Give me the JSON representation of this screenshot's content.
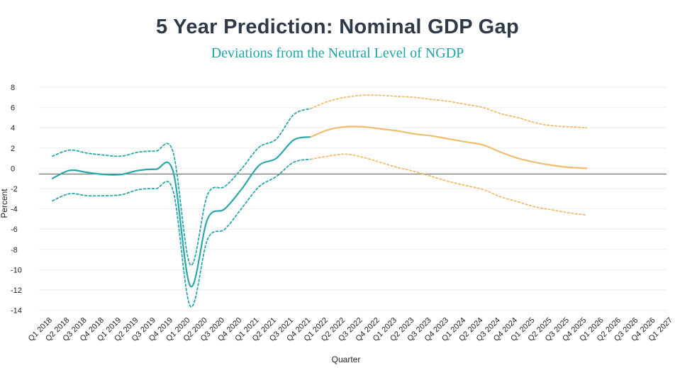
{
  "title": "5 Year Prediction: Nominal GDP Gap",
  "subtitle": "Deviations from the Neutral Level of NGDP",
  "colors": {
    "history": "#2aa7a9",
    "forecast": "#f0bd6e",
    "zero_line": "#555555",
    "grid": "#eeeeee"
  },
  "chart_data": {
    "type": "line",
    "title": "5 Year Prediction: Nominal GDP Gap",
    "subtitle": "Deviations from the Neutral Level of NGDP",
    "xlabel": "Quarter",
    "ylabel": "Percent",
    "ylim": [
      -14,
      8
    ],
    "yticks": [
      8,
      6,
      4,
      2,
      0,
      -2,
      -4,
      -6,
      -8,
      -10,
      -12,
      -14
    ],
    "grid": true,
    "categories": [
      "Q1 2018",
      "Q2 2018",
      "Q3 2018",
      "Q4 2018",
      "Q1 2019",
      "Q2 2019",
      "Q3 2019",
      "Q4 2019",
      "Q1 2020",
      "Q2 2020",
      "Q3 2020",
      "Q4 2020",
      "Q1 2021",
      "Q2 2021",
      "Q3 2021",
      "Q4 2021",
      "Q1 2022",
      "Q2 2022",
      "Q3 2022",
      "Q4 2022",
      "Q1 2023",
      "Q2 2023",
      "Q3 2023",
      "Q4 2023",
      "Q1 2024",
      "Q2 2024",
      "Q3 2024",
      "Q4 2024",
      "Q1 2025",
      "Q2 2025",
      "Q3 2025",
      "Q4 2025",
      "Q1 2026",
      "Q2 2026",
      "Q3 2026",
      "Q4 2026",
      "Q1 2027"
    ],
    "history_end_index": 16,
    "series": [
      {
        "role": "history-point",
        "style": "solid",
        "values": [
          -1.0,
          -0.2,
          -0.4,
          -0.6,
          -0.6,
          -0.2,
          -0.1,
          -0.3,
          -11.6,
          -5.0,
          -4.0,
          -2.0,
          0.3,
          1.0,
          2.8,
          3.1,
          null,
          null,
          null,
          null,
          null,
          null,
          null,
          null,
          null,
          null,
          null,
          null,
          null,
          null,
          null,
          null,
          null,
          null,
          null,
          null,
          null
        ]
      },
      {
        "role": "history-upper",
        "style": "dotted",
        "values": [
          1.2,
          1.8,
          1.5,
          1.3,
          1.2,
          1.6,
          1.7,
          1.6,
          -9.5,
          -2.6,
          -1.8,
          0.0,
          2.1,
          2.9,
          5.3,
          5.9,
          null,
          null,
          null,
          null,
          null,
          null,
          null,
          null,
          null,
          null,
          null,
          null,
          null,
          null,
          null,
          null,
          null,
          null,
          null,
          null,
          null
        ]
      },
      {
        "role": "history-lower",
        "style": "dotted",
        "values": [
          -3.2,
          -2.5,
          -2.7,
          -2.7,
          -2.6,
          -2.1,
          -2.0,
          -2.2,
          -13.6,
          -7.0,
          -6.0,
          -3.9,
          -1.8,
          -0.8,
          0.6,
          0.9,
          null,
          null,
          null,
          null,
          null,
          null,
          null,
          null,
          null,
          null,
          null,
          null,
          null,
          null,
          null,
          null,
          null,
          null,
          null,
          null,
          null
        ]
      },
      {
        "role": "forecast-point",
        "style": "solid",
        "values": [
          null,
          null,
          null,
          null,
          null,
          null,
          null,
          null,
          null,
          null,
          null,
          null,
          null,
          null,
          null,
          3.1,
          3.8,
          4.1,
          4.1,
          3.9,
          3.7,
          3.4,
          3.2,
          2.9,
          2.6,
          2.3,
          1.6,
          1.0,
          0.6,
          0.3,
          0.1,
          0.0,
          null,
          null,
          null,
          null,
          null
        ]
      },
      {
        "role": "forecast-upper",
        "style": "dotted",
        "values": [
          null,
          null,
          null,
          null,
          null,
          null,
          null,
          null,
          null,
          null,
          null,
          null,
          null,
          null,
          null,
          5.9,
          6.6,
          7.0,
          7.2,
          7.2,
          7.1,
          7.0,
          6.8,
          6.6,
          6.3,
          6.0,
          5.4,
          5.0,
          4.5,
          4.2,
          4.1,
          4.0,
          null,
          null,
          null,
          null,
          null
        ]
      },
      {
        "role": "forecast-lower",
        "style": "dotted",
        "values": [
          null,
          null,
          null,
          null,
          null,
          null,
          null,
          null,
          null,
          null,
          null,
          null,
          null,
          null,
          null,
          0.9,
          1.2,
          1.4,
          1.1,
          0.6,
          0.1,
          -0.3,
          -0.8,
          -1.3,
          -1.7,
          -2.1,
          -2.8,
          -3.3,
          -3.8,
          -4.1,
          -4.4,
          -4.6,
          null,
          null,
          null,
          null,
          null
        ]
      }
    ]
  }
}
